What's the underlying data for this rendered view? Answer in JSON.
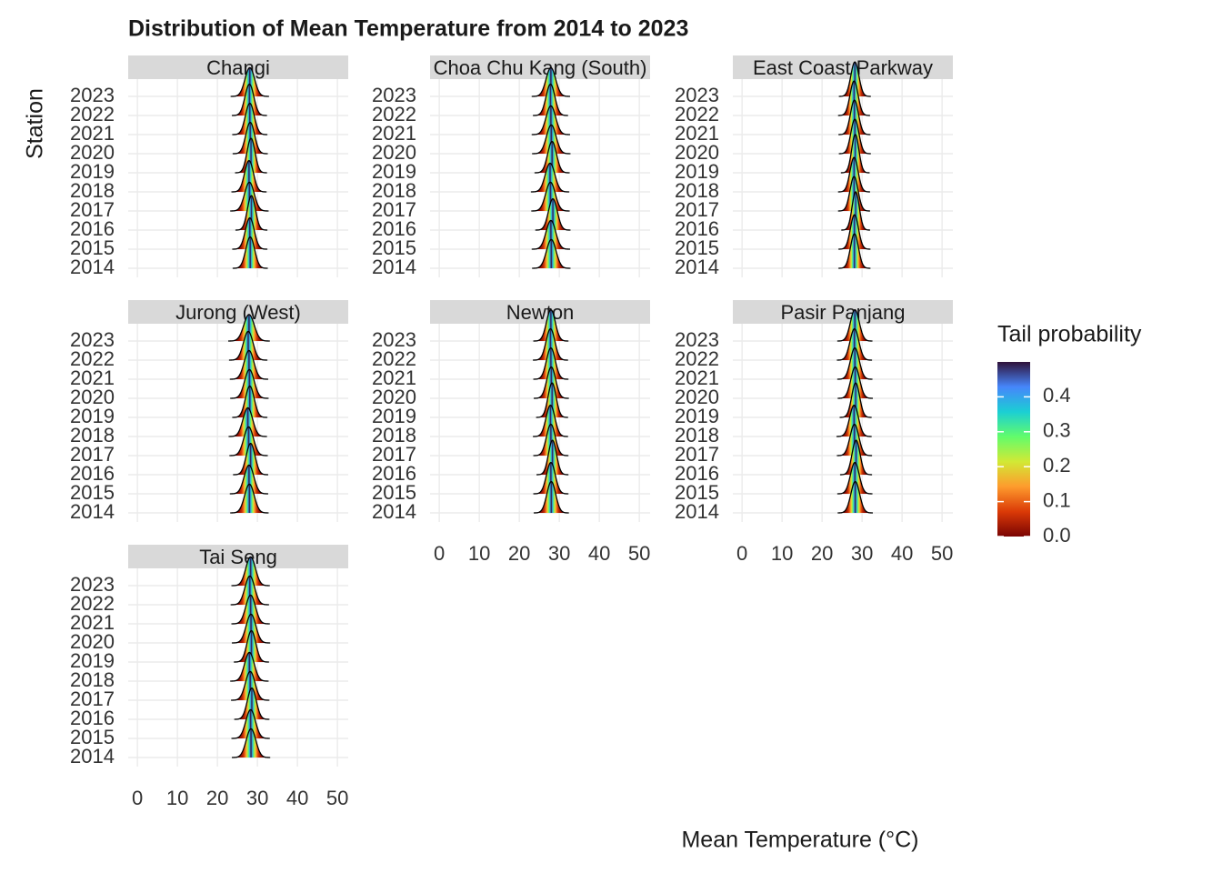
{
  "chart_data": {
    "type": "ridgeline",
    "title": "Distribution of Mean Temperature from 2014 to 2023",
    "x_label": "Mean Temperature (°C)",
    "y_label": "Station",
    "categories": [
      2014,
      2015,
      2016,
      2017,
      2018,
      2019,
      2020,
      2021,
      2022,
      2023
    ],
    "facets": [
      {
        "name": "Changi",
        "mean": [
          28.2,
          28.1,
          28.5,
          28.0,
          27.9,
          28.4,
          28.2,
          28.1,
          28.0,
          28.1
        ],
        "sd": [
          1.1,
          1.1,
          1.0,
          1.2,
          1.1,
          1.0,
          1.1,
          1.1,
          1.1,
          1.2
        ]
      },
      {
        "name": "Choa Chu Kang (South)",
        "mean": [
          28.0,
          27.9,
          28.4,
          27.8,
          27.7,
          28.2,
          28.0,
          27.9,
          27.8,
          27.9
        ],
        "sd": [
          1.2,
          1.2,
          1.1,
          1.2,
          1.2,
          1.1,
          1.2,
          1.2,
          1.1,
          1.2
        ]
      },
      {
        "name": "East Coast Parkway",
        "mean": [
          28.1,
          28.1,
          28.4,
          28.0,
          28.0,
          28.3,
          28.2,
          28.1,
          28.0,
          28.2
        ],
        "sd": [
          1.0,
          1.0,
          0.9,
          1.0,
          1.0,
          0.9,
          1.0,
          1.0,
          1.0,
          1.0
        ]
      },
      {
        "name": "Jurong (West)",
        "mean": [
          28.0,
          27.9,
          28.3,
          27.8,
          27.6,
          28.1,
          28.0,
          27.9,
          27.7,
          27.9
        ],
        "sd": [
          1.2,
          1.2,
          1.1,
          1.2,
          1.2,
          1.1,
          1.2,
          1.2,
          1.2,
          1.3
        ]
      },
      {
        "name": "Newton",
        "mean": [
          28.0,
          27.9,
          28.3,
          27.9,
          27.8,
          28.2,
          28.0,
          27.9,
          27.8,
          27.9
        ],
        "sd": [
          1.1,
          1.1,
          1.0,
          1.1,
          1.1,
          1.0,
          1.1,
          1.1,
          1.1,
          1.1
        ]
      },
      {
        "name": "Pasir Panjang",
        "mean": [
          28.3,
          28.2,
          28.5,
          28.1,
          28.0,
          28.4,
          28.3,
          28.2,
          28.1,
          28.2
        ],
        "sd": [
          1.1,
          1.1,
          1.0,
          1.1,
          1.1,
          1.0,
          1.1,
          1.1,
          1.1,
          1.1
        ]
      },
      {
        "name": "Tai Seng",
        "mean": [
          28.4,
          28.3,
          28.6,
          28.2,
          28.0,
          28.5,
          28.4,
          28.3,
          28.1,
          28.3
        ],
        "sd": [
          1.2,
          1.2,
          1.1,
          1.2,
          1.2,
          1.1,
          1.2,
          1.2,
          1.2,
          1.2
        ]
      }
    ],
    "xlim": [
      -2.3,
      52.7
    ],
    "xticks": [
      0,
      10,
      20,
      30,
      40,
      50
    ],
    "grid": true,
    "line_color": "#000000",
    "legend": {
      "title": "Tail probability",
      "lim": [
        0,
        0.5
      ],
      "ticks": [
        {
          "value": 0,
          "label": "0.0"
        },
        {
          "value": 0.1,
          "label": "0.1"
        },
        {
          "value": 0.2,
          "label": "0.2"
        },
        {
          "value": 0.3,
          "label": "0.3"
        },
        {
          "value": 0.4,
          "label": "0.4"
        }
      ],
      "colors": [
        "#7a0403",
        "#db3a07",
        "#fe9b2d",
        "#d2e935",
        "#62fc6b",
        "#1bcfd4",
        "#4686fb",
        "#30123b"
      ]
    }
  }
}
